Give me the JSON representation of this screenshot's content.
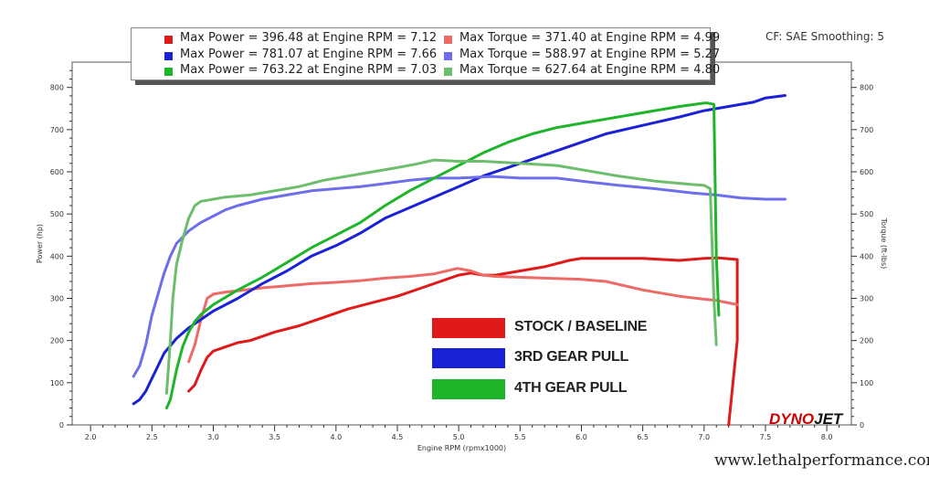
{
  "chart_data": {
    "type": "line",
    "xlabel": "Engine RPM (rpmx1000)",
    "ylabel_left": "Power (hp)",
    "ylabel_right": "Torque (ft-lbs)",
    "xlim": [
      1.85,
      8.2
    ],
    "ylim": [
      0,
      860
    ],
    "x_ticks": [
      "2.0",
      "2.5",
      "3.0",
      "3.5",
      "4.0",
      "4.5",
      "5.0",
      "5.5",
      "6.0",
      "6.5",
      "7.0",
      "7.5",
      "8.0"
    ],
    "y_ticks": [
      "0",
      "100",
      "200",
      "300",
      "400",
      "500",
      "600",
      "700",
      "800"
    ],
    "grid": false,
    "legend": [
      {
        "label": "Max Power = 396.48 at Engine RPM = 7.12",
        "color": "#e0191a"
      },
      {
        "label": "Max Torque = 371.40 at Engine RPM = 4.99",
        "color": "#ee6a66"
      },
      {
        "label": "Max Power = 781.07 at Engine RPM = 7.66",
        "color": "#1a22d6"
      },
      {
        "label": "Max Torque = 588.97 at Engine RPM = 5.27",
        "color": "#6d6ded"
      },
      {
        "label": "Max Power = 763.22 at Engine RPM = 7.03",
        "color": "#1fb52a"
      },
      {
        "label": "Max Torque = 627.64 at Engine RPM = 4.80",
        "color": "#6cbd6c"
      }
    ],
    "series": [
      {
        "color": "#e0191a",
        "x": [
          2.8,
          2.85,
          2.9,
          2.95,
          3.0,
          3.1,
          3.2,
          3.3,
          3.5,
          3.7,
          3.9,
          4.1,
          4.3,
          4.5,
          4.7,
          4.9,
          5.0,
          5.1,
          5.2,
          5.3,
          5.5,
          5.7,
          5.9,
          6.0,
          6.2,
          6.5,
          6.8,
          7.0,
          7.12,
          7.27,
          7.27,
          7.2
        ],
        "y": [
          80,
          95,
          130,
          160,
          175,
          185,
          195,
          200,
          220,
          235,
          255,
          275,
          290,
          305,
          325,
          345,
          355,
          360,
          355,
          355,
          365,
          375,
          390,
          395,
          395,
          395,
          390,
          395,
          396,
          392,
          200,
          0
        ]
      },
      {
        "color": "#ee6a66",
        "x": [
          2.8,
          2.85,
          2.9,
          2.95,
          3.0,
          3.1,
          3.2,
          3.4,
          3.6,
          3.8,
          4.0,
          4.2,
          4.4,
          4.6,
          4.8,
          4.99,
          5.1,
          5.2,
          5.3,
          5.5,
          5.7,
          6.0,
          6.2,
          6.5,
          6.8,
          7.0,
          7.1,
          7.27
        ],
        "y": [
          150,
          190,
          250,
          300,
          310,
          315,
          318,
          325,
          330,
          335,
          338,
          342,
          348,
          352,
          358,
          371,
          365,
          355,
          352,
          350,
          348,
          345,
          340,
          320,
          305,
          298,
          295,
          285
        ]
      },
      {
        "color": "#1a22d6",
        "x": [
          2.35,
          2.4,
          2.45,
          2.5,
          2.6,
          2.7,
          2.8,
          2.9,
          3.0,
          3.2,
          3.4,
          3.6,
          3.8,
          4.0,
          4.2,
          4.4,
          4.6,
          4.8,
          5.0,
          5.2,
          5.4,
          5.6,
          5.8,
          6.0,
          6.2,
          6.5,
          6.8,
          7.0,
          7.2,
          7.4,
          7.5,
          7.66
        ],
        "y": [
          50,
          60,
          80,
          110,
          170,
          205,
          230,
          250,
          270,
          300,
          335,
          365,
          400,
          425,
          455,
          490,
          515,
          540,
          565,
          590,
          610,
          630,
          650,
          670,
          690,
          710,
          730,
          745,
          755,
          765,
          775,
          781
        ]
      },
      {
        "color": "#6d6ded",
        "x": [
          2.35,
          2.4,
          2.45,
          2.5,
          2.6,
          2.65,
          2.7,
          2.8,
          2.9,
          3.0,
          3.1,
          3.2,
          3.4,
          3.6,
          3.8,
          4.0,
          4.2,
          4.4,
          4.6,
          4.8,
          5.0,
          5.27,
          5.5,
          5.8,
          6.0,
          6.3,
          6.6,
          6.9,
          7.1,
          7.3,
          7.5,
          7.66
        ],
        "y": [
          115,
          140,
          190,
          260,
          360,
          400,
          430,
          460,
          480,
          495,
          510,
          520,
          535,
          545,
          555,
          560,
          565,
          572,
          580,
          585,
          585,
          589,
          585,
          585,
          578,
          568,
          560,
          550,
          545,
          538,
          535,
          535
        ]
      },
      {
        "color": "#1fb52a",
        "x": [
          2.62,
          2.65,
          2.7,
          2.75,
          2.8,
          2.85,
          2.9,
          3.0,
          3.2,
          3.4,
          3.6,
          3.8,
          4.0,
          4.2,
          4.4,
          4.6,
          4.8,
          5.0,
          5.2,
          5.4,
          5.6,
          5.8,
          6.0,
          6.2,
          6.5,
          6.8,
          7.0,
          7.03,
          7.08,
          7.1,
          7.12
        ],
        "y": [
          40,
          60,
          130,
          185,
          220,
          245,
          262,
          285,
          320,
          350,
          385,
          420,
          450,
          480,
          520,
          555,
          585,
          615,
          645,
          670,
          690,
          705,
          715,
          725,
          740,
          755,
          763,
          763,
          760,
          400,
          260
        ]
      },
      {
        "color": "#6cbd6c",
        "x": [
          2.62,
          2.65,
          2.67,
          2.7,
          2.75,
          2.8,
          2.85,
          2.9,
          3.0,
          3.1,
          3.3,
          3.5,
          3.7,
          3.9,
          4.1,
          4.3,
          4.5,
          4.65,
          4.8,
          5.0,
          5.2,
          5.5,
          5.8,
          6.0,
          6.3,
          6.6,
          6.9,
          7.0,
          7.05,
          7.08,
          7.1
        ],
        "y": [
          75,
          200,
          300,
          380,
          440,
          490,
          520,
          530,
          535,
          540,
          545,
          555,
          565,
          580,
          590,
          600,
          610,
          618,
          628,
          625,
          625,
          620,
          615,
          605,
          590,
          578,
          570,
          568,
          560,
          300,
          190
        ]
      }
    ]
  },
  "header": {
    "cf_text": "CF: SAE Smoothing: 5"
  },
  "annotations": [
    {
      "label": "STOCK / BASELINE",
      "color": "#e0191a"
    },
    {
      "label": "3RD GEAR PULL",
      "color": "#1a22d6"
    },
    {
      "label": "4TH GEAR PULL",
      "color": "#1fb52a"
    }
  ],
  "logo": {
    "part1": "DYNO",
    "part2": "JET"
  },
  "footer": {
    "website": "www.lethalperformance.com"
  }
}
